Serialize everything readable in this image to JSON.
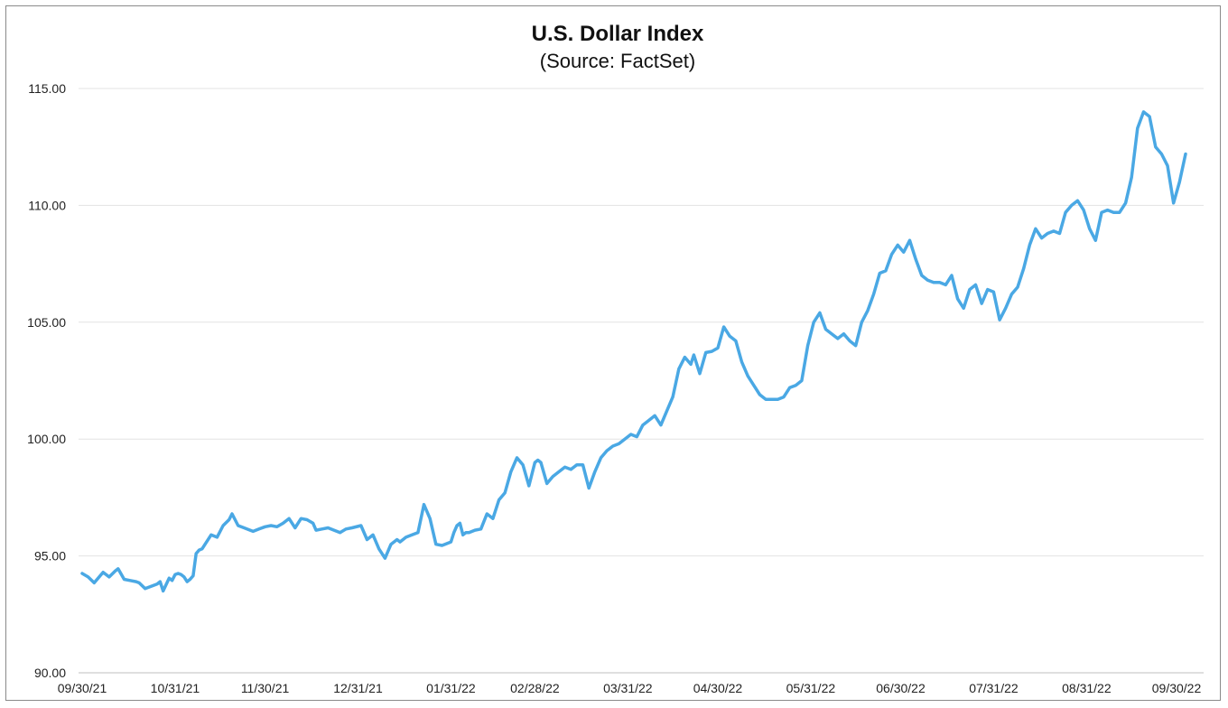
{
  "chart_data": {
    "type": "line",
    "title": "U.S. Dollar Index",
    "subtitle": "(Source: FactSet)",
    "xlabel": "",
    "ylabel": "",
    "ylim": [
      90,
      115
    ],
    "yticks": [
      90,
      95,
      100,
      105,
      110,
      115
    ],
    "ytick_labels": [
      "90.00",
      "95.00",
      "100.00",
      "105.00",
      "110.00",
      "115.00"
    ],
    "xtick_labels": [
      "09/30/21",
      "10/31/21",
      "11/30/21",
      "12/31/21",
      "01/31/22",
      "02/28/22",
      "03/31/22",
      "04/30/22",
      "05/31/22",
      "06/30/22",
      "07/31/22",
      "08/31/22",
      "09/30/22"
    ],
    "xtick_dates": [
      "2021-09-30",
      "2021-10-31",
      "2021-11-30",
      "2021-12-31",
      "2022-01-31",
      "2022-02-28",
      "2022-03-31",
      "2022-04-30",
      "2022-05-31",
      "2022-06-30",
      "2022-07-31",
      "2022-08-31",
      "2022-09-30"
    ],
    "grid": "horizontal",
    "legend": "none",
    "line_color": "#4aa8e4",
    "series": [
      {
        "x": [
          "2021-09-30",
          "2021-10-02",
          "2021-10-04",
          "2021-10-05",
          "2021-10-07",
          "2021-10-09",
          "2021-10-11",
          "2021-10-12",
          "2021-10-14",
          "2021-10-16",
          "2021-10-18",
          "2021-10-19",
          "2021-10-21",
          "2021-10-23",
          "2021-10-25",
          "2021-10-26",
          "2021-10-27",
          "2021-10-29",
          "2021-10-30",
          "2021-10-31",
          "2021-11-01",
          "2021-11-02",
          "2021-11-03",
          "2021-11-04",
          "2021-11-05",
          "2021-11-06",
          "2021-11-07",
          "2021-11-08",
          "2021-11-09",
          "2021-11-10",
          "2021-11-12",
          "2021-11-14",
          "2021-11-16",
          "2021-11-18",
          "2021-11-19",
          "2021-11-21",
          "2021-11-23",
          "2021-11-25",
          "2021-11-26",
          "2021-11-28",
          "2021-11-30",
          "2021-12-02",
          "2021-12-04",
          "2021-12-06",
          "2021-12-08",
          "2021-12-10",
          "2021-12-12",
          "2021-12-14",
          "2021-12-16",
          "2021-12-17",
          "2021-12-19",
          "2021-12-21",
          "2021-12-23",
          "2021-12-25",
          "2021-12-27",
          "2021-12-29",
          "2022-01-01",
          "2022-01-03",
          "2022-01-05",
          "2022-01-07",
          "2022-01-09",
          "2022-01-11",
          "2022-01-13",
          "2022-01-14",
          "2022-01-16",
          "2022-01-18",
          "2022-01-20",
          "2022-01-22",
          "2022-01-24",
          "2022-01-26",
          "2022-01-28",
          "2022-01-29",
          "2022-01-31",
          "2022-02-01",
          "2022-02-02",
          "2022-02-03",
          "2022-02-04",
          "2022-02-05",
          "2022-02-06",
          "2022-02-08",
          "2022-02-10",
          "2022-02-12",
          "2022-02-14",
          "2022-02-16",
          "2022-02-18",
          "2022-02-20",
          "2022-02-22",
          "2022-02-24",
          "2022-02-26",
          "2022-02-28",
          "2022-03-01",
          "2022-03-02",
          "2022-03-04",
          "2022-03-06",
          "2022-03-08",
          "2022-03-10",
          "2022-03-12",
          "2022-03-14",
          "2022-03-16",
          "2022-03-18",
          "2022-03-20",
          "2022-03-22",
          "2022-03-24",
          "2022-03-26",
          "2022-03-28",
          "2022-03-30",
          "2022-04-01",
          "2022-04-03",
          "2022-04-05",
          "2022-04-07",
          "2022-04-09",
          "2022-04-11",
          "2022-04-13",
          "2022-04-15",
          "2022-04-17",
          "2022-04-19",
          "2022-04-21",
          "2022-04-22",
          "2022-04-24",
          "2022-04-26",
          "2022-04-28",
          "2022-04-30",
          "2022-05-02",
          "2022-05-04",
          "2022-05-06",
          "2022-05-08",
          "2022-05-10",
          "2022-05-12",
          "2022-05-14",
          "2022-05-16",
          "2022-05-18",
          "2022-05-20",
          "2022-05-22",
          "2022-05-24",
          "2022-05-26",
          "2022-05-28",
          "2022-05-30",
          "2022-06-01",
          "2022-06-03",
          "2022-06-05",
          "2022-06-07",
          "2022-06-09",
          "2022-06-11",
          "2022-06-13",
          "2022-06-15",
          "2022-06-17",
          "2022-06-19",
          "2022-06-21",
          "2022-06-23",
          "2022-06-25",
          "2022-06-27",
          "2022-06-29",
          "2022-07-01",
          "2022-07-03",
          "2022-07-05",
          "2022-07-07",
          "2022-07-09",
          "2022-07-11",
          "2022-07-13",
          "2022-07-15",
          "2022-07-17",
          "2022-07-19",
          "2022-07-21",
          "2022-07-23",
          "2022-07-25",
          "2022-07-27",
          "2022-07-29",
          "2022-07-31",
          "2022-08-02",
          "2022-08-04",
          "2022-08-06",
          "2022-08-08",
          "2022-08-10",
          "2022-08-12",
          "2022-08-14",
          "2022-08-16",
          "2022-08-18",
          "2022-08-20",
          "2022-08-22",
          "2022-08-24",
          "2022-08-26",
          "2022-08-28",
          "2022-08-30",
          "2022-09-01",
          "2022-09-03",
          "2022-09-05",
          "2022-09-07",
          "2022-09-09",
          "2022-09-11",
          "2022-09-13",
          "2022-09-15",
          "2022-09-17",
          "2022-09-19",
          "2022-09-21",
          "2022-09-23",
          "2022-09-25",
          "2022-09-27",
          "2022-09-29",
          "2022-10-01",
          "2022-10-03"
        ],
        "y": [
          94.25,
          94.1,
          93.85,
          94.0,
          94.3,
          94.1,
          94.35,
          94.45,
          94.0,
          93.95,
          93.9,
          93.85,
          93.6,
          93.7,
          93.8,
          93.9,
          93.5,
          94.05,
          93.95,
          94.2,
          94.25,
          94.2,
          94.1,
          93.9,
          94.0,
          94.15,
          95.1,
          95.25,
          95.3,
          95.5,
          95.9,
          95.8,
          96.3,
          96.55,
          96.8,
          96.3,
          96.2,
          96.1,
          96.05,
          96.15,
          96.25,
          96.3,
          96.25,
          96.4,
          96.6,
          96.2,
          96.6,
          96.55,
          96.4,
          96.1,
          96.15,
          96.2,
          96.1,
          96.0,
          96.15,
          96.2,
          96.3,
          95.7,
          95.9,
          95.3,
          94.9,
          95.5,
          95.7,
          95.6,
          95.8,
          95.9,
          96.0,
          97.2,
          96.6,
          95.5,
          95.45,
          95.5,
          95.6,
          96.0,
          96.3,
          96.4,
          95.9,
          96.0,
          96.0,
          96.1,
          96.15,
          96.8,
          96.6,
          97.4,
          97.7,
          98.6,
          99.2,
          98.9,
          98.0,
          99.0,
          99.1,
          99.0,
          98.1,
          98.4,
          98.6,
          98.8,
          98.7,
          98.9,
          98.9,
          97.9,
          98.6,
          99.2,
          99.5,
          99.7,
          99.8,
          100.0,
          100.2,
          100.1,
          100.6,
          100.8,
          101.0,
          100.6,
          101.2,
          101.8,
          103.0,
          103.5,
          103.2,
          103.6,
          102.8,
          103.7,
          103.75,
          103.9,
          104.8,
          104.4,
          104.2,
          103.3,
          102.7,
          102.3,
          101.9,
          101.7,
          101.7,
          101.7,
          101.8,
          102.2,
          102.3,
          102.5,
          104.0,
          105.0,
          105.4,
          104.7,
          104.5,
          104.3,
          104.5,
          104.2,
          104.0,
          105.0,
          105.5,
          106.2,
          107.1,
          107.2,
          107.9,
          108.3,
          108.0,
          108.5,
          107.7,
          107.0,
          106.8,
          106.7,
          106.7,
          106.6,
          107.0,
          106.0,
          105.6,
          106.4,
          106.6,
          105.8,
          106.4,
          106.3,
          105.1,
          105.6,
          106.2,
          106.5,
          107.3,
          108.3,
          109.0,
          108.6,
          108.8,
          108.9,
          108.8,
          109.7,
          110.0,
          110.2,
          109.8,
          109.0,
          108.5,
          109.7,
          109.8,
          109.7,
          109.7,
          110.1,
          111.2,
          113.3,
          114.0,
          113.8,
          112.5,
          112.2,
          111.7,
          110.1,
          111.0,
          112.2
        ]
      }
    ]
  }
}
